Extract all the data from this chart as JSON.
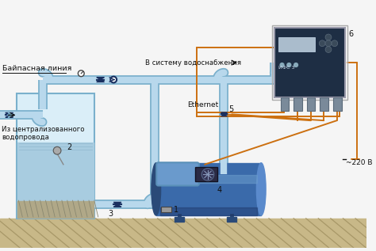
{
  "bg_color": "#f5f5f5",
  "pipe_color": "#b8d8ec",
  "pipe_edge_color": "#7ab0cc",
  "pipe_dark": "#5a90b8",
  "tank_fill": "#daeef8",
  "tank_water": "#a8cce0",
  "tank_border": "#7ab0cc",
  "acc_dark": "#2a4a78",
  "acc_mid": "#3a6aaa",
  "acc_light": "#5a8acc",
  "pump_body": "#6a9acc",
  "pump_motor": "#2a2a44",
  "panel_bg": "#1e2e44",
  "panel_border": "#888888",
  "wire_color": "#cc7010",
  "ground_fill": "#c8b888",
  "ground_hatch": "#a89868",
  "valve_dark": "#1a3060",
  "valve_light": "#4060a0",
  "check_valve": "#1a3060",
  "label_black": "#000000",
  "label_underline": true,
  "numbers": [
    "1",
    "2",
    "3",
    "4",
    "5",
    "6"
  ],
  "texts": {
    "bypass": "Байпасная линия",
    "water_sys": "В систему водоснабжения",
    "from_main": "Из централизованного\nводопровода",
    "ethernet": "Ethernet",
    "voltage": "~220 В"
  }
}
